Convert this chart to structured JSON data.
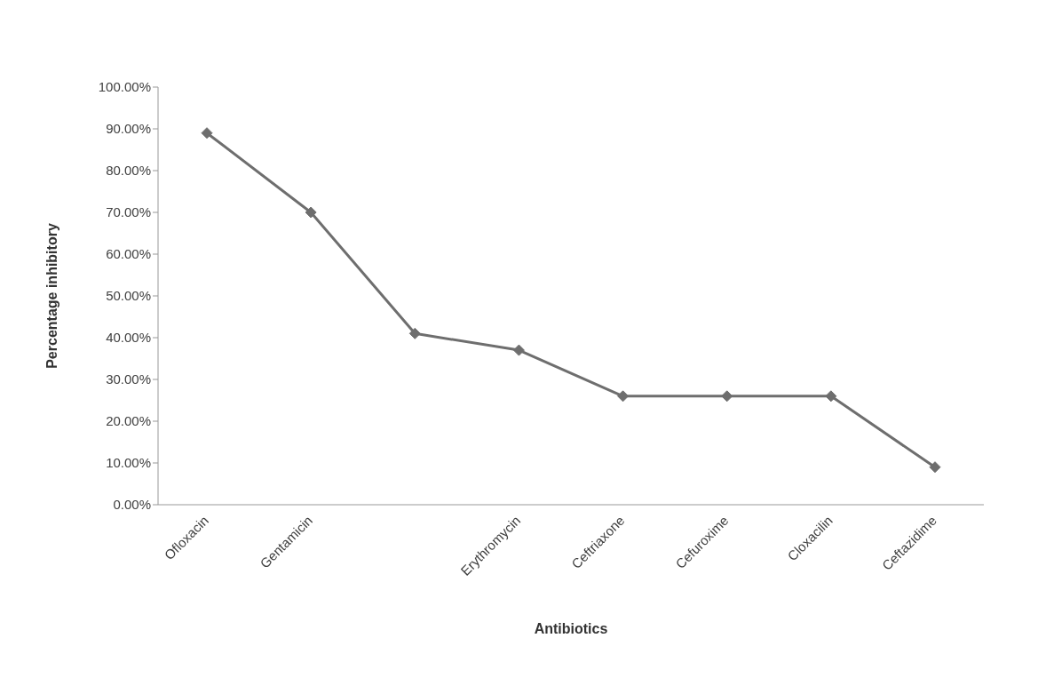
{
  "chart_data": {
    "type": "line",
    "xlabel": "Antibiotics",
    "ylabel": "Percentage inhibitory",
    "categories": [
      "Ofloxacin",
      "Gentamicin",
      null,
      "Erythromycin",
      "Ceftriaxone",
      "Cefuroxime",
      "Cloxacilin",
      "Ceftazidime"
    ],
    "series": [
      {
        "color": "#6e6e6e",
        "values": [
          89,
          70,
          41,
          37,
          26,
          26,
          26,
          9
        ]
      }
    ],
    "ylim": [
      0,
      100
    ],
    "yticks": [
      {
        "value": 0,
        "label": "0.00%"
      },
      {
        "value": 10,
        "label": "10.00%"
      },
      {
        "value": 20,
        "label": "20.00%"
      },
      {
        "value": 30,
        "label": "30.00%"
      },
      {
        "value": 40,
        "label": "40.00%"
      },
      {
        "value": 50,
        "label": "50.00%"
      },
      {
        "value": 60,
        "label": "60.00%"
      },
      {
        "value": 70,
        "label": "70.00%"
      },
      {
        "value": 80,
        "label": "80.00%"
      },
      {
        "value": 90,
        "label": "90.00%"
      },
      {
        "value": 100,
        "label": "100.00%"
      }
    ],
    "grid": false,
    "legend": false,
    "marker": "diamond",
    "line_style": "solid"
  }
}
